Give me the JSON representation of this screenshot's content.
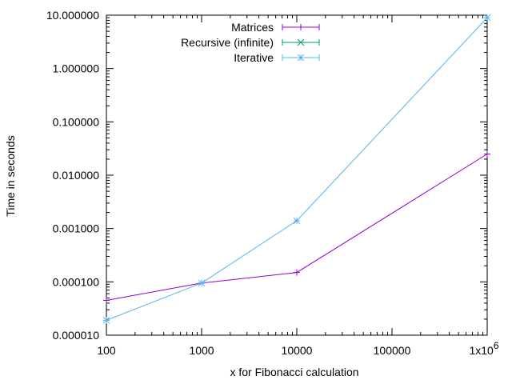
{
  "chart_data": {
    "type": "line",
    "xlabel": "x for Fibonacci calculation",
    "ylabel": "Time in seconds",
    "x_scale": "log",
    "y_scale": "log",
    "xlim": [
      100,
      1000000
    ],
    "ylim": [
      1e-05,
      10
    ],
    "x_ticks": [
      {
        "value": 100,
        "label": "100"
      },
      {
        "value": 1000,
        "label": "1000"
      },
      {
        "value": 10000,
        "label": "10000"
      },
      {
        "value": 100000,
        "label": "100000"
      },
      {
        "value": 1000000,
        "label": "1x10",
        "exponent": "6"
      }
    ],
    "y_ticks": [
      {
        "value": 1e-05,
        "label": "0.000010"
      },
      {
        "value": 0.0001,
        "label": "0.000100"
      },
      {
        "value": 0.001,
        "label": "0.001000"
      },
      {
        "value": 0.01,
        "label": "0.010000"
      },
      {
        "value": 0.1,
        "label": "0.100000"
      },
      {
        "value": 1,
        "label": "1.000000"
      },
      {
        "value": 10,
        "label": "10.000000"
      }
    ],
    "grid": false,
    "legend_position": "top-left",
    "series": [
      {
        "name": "Matrices",
        "color": "#9400d3",
        "marker": "plus",
        "points": [
          {
            "x": 100,
            "y": 4.5e-05
          },
          {
            "x": 1000,
            "y": 9.5e-05
          },
          {
            "x": 10000,
            "y": 0.00015
          },
          {
            "x": 1000000,
            "y": 0.025
          }
        ]
      },
      {
        "name": "Recursive (infinite)",
        "color": "#009e73",
        "marker": "cross",
        "points": []
      },
      {
        "name": "Iterative",
        "color": "#56b4e9",
        "marker": "star",
        "points": [
          {
            "x": 100,
            "y": 1.9e-05
          },
          {
            "x": 1000,
            "y": 9.5e-05
          },
          {
            "x": 10000,
            "y": 0.0014
          },
          {
            "x": 1000000,
            "y": 9
          }
        ]
      }
    ]
  }
}
